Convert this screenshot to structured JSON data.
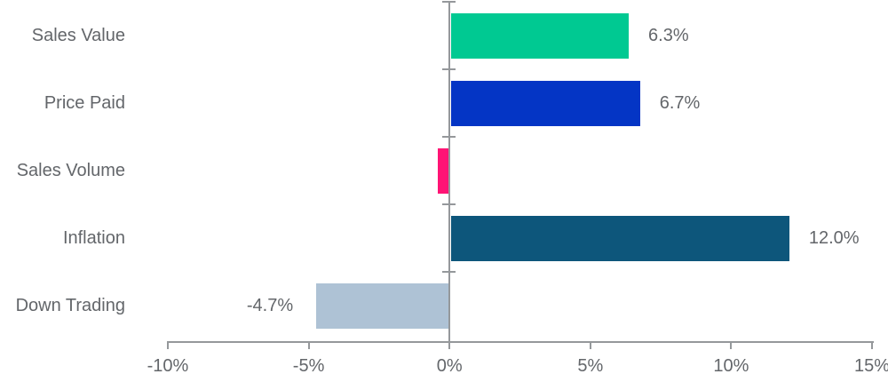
{
  "page": {
    "background": "#FFFFFF"
  },
  "chart_data": {
    "type": "bar",
    "orientation": "horizontal",
    "title": "",
    "categories": [
      "Sales Value",
      "Price Paid",
      "Sales Volume",
      "Inflation",
      "Down Trading"
    ],
    "values": [
      6.3,
      6.7,
      -0.4,
      12.0,
      -4.7
    ],
    "value_labels": [
      "6.3%",
      "6.7%",
      "",
      "12.0%",
      "-4.7%"
    ],
    "bar_colors": [
      "#00C992",
      "#0435C5",
      "#FF1475",
      "#0D567B",
      "#AEC2D5"
    ],
    "xlim": [
      -10,
      15
    ],
    "x_ticks": [
      -10,
      -5,
      0,
      5,
      10,
      15
    ],
    "x_tick_labels": [
      "-10%",
      "-5%",
      "0%",
      "5%",
      "10%",
      "15%"
    ],
    "grid": false,
    "legend": false,
    "axis_color": "#95989B",
    "text_color": "#63666A"
  }
}
